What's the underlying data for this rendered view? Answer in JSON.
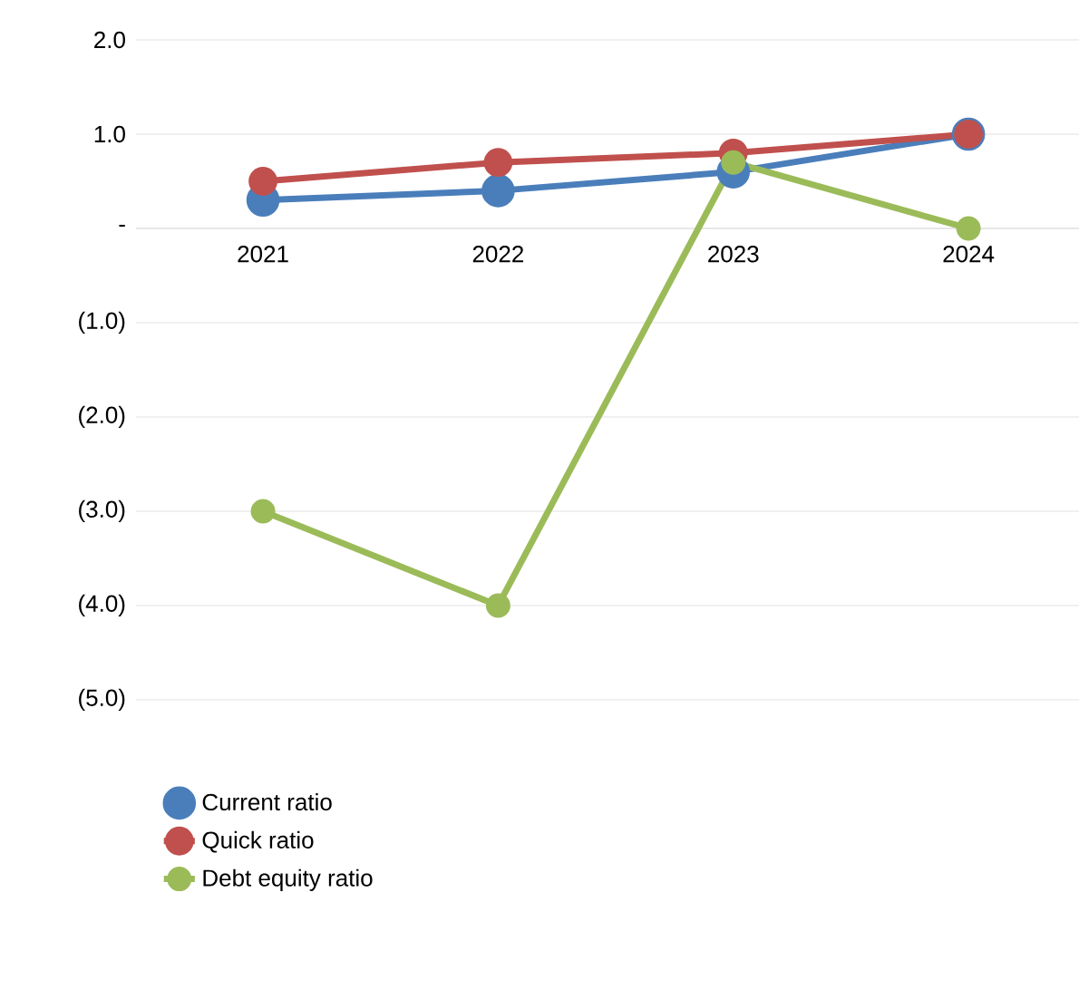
{
  "chart_data": {
    "type": "line",
    "categories": [
      "2021",
      "2022",
      "2023",
      "2024"
    ],
    "series": [
      {
        "name": "Current ratio",
        "color": "#4a7ebb",
        "values": [
          0.3,
          0.4,
          0.6,
          1.0
        ]
      },
      {
        "name": "Quick ratio",
        "color": "#c0504d",
        "values": [
          0.5,
          0.7,
          0.8,
          1.0
        ]
      },
      {
        "name": "Debt equity ratio",
        "color": "#9bbb59",
        "values": [
          -3.0,
          -4.0,
          0.7,
          0.0
        ]
      }
    ],
    "ylim": [
      -5,
      2
    ],
    "yticks": [
      {
        "value": -5,
        "label": "(5.0)"
      },
      {
        "value": -4,
        "label": "(4.0)"
      },
      {
        "value": -3,
        "label": "(3.0)"
      },
      {
        "value": -2,
        "label": "(2.0)"
      },
      {
        "value": -1,
        "label": "(1.0)"
      },
      {
        "value": 0,
        "label": "-"
      },
      {
        "value": 1,
        "label": "1.0"
      },
      {
        "value": 2,
        "label": "2.0"
      }
    ],
    "grid": "y",
    "legend": "bottom",
    "marker": "circle",
    "line_style": "solid"
  }
}
